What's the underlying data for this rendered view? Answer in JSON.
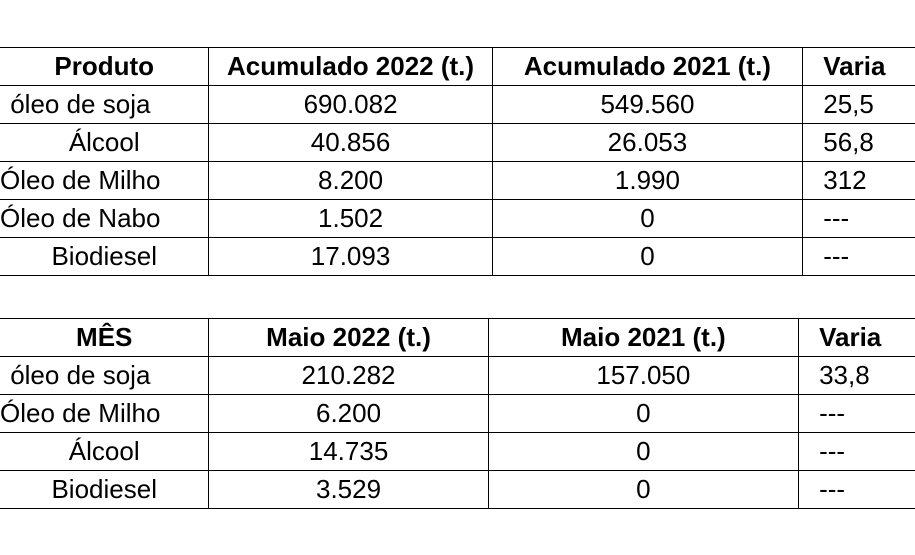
{
  "acumulado": {
    "headers": [
      "Produto",
      "Acumulado 2022 (t.)",
      "Acumulado 2021 (t.)",
      "Varia"
    ],
    "rows": [
      [
        "óleo de soja",
        "690.082",
        "549.560",
        "25,5"
      ],
      [
        "Álcool",
        "40.856",
        "26.053",
        "56,8"
      ],
      [
        "Óleo de Milho",
        "8.200",
        "1.990",
        "312"
      ],
      [
        "Óleo de Nabo",
        "1.502",
        "0",
        "---"
      ],
      [
        "Biodiesel",
        "17.093",
        "0",
        "---"
      ]
    ]
  },
  "mes": {
    "headers": [
      "MÊS",
      "Maio 2022 (t.)",
      "Maio 2021 (t.)",
      "Varia"
    ],
    "rows": [
      [
        "óleo de soja",
        "210.282",
        "157.050",
        "33,8"
      ],
      [
        "Óleo de Milho",
        "6.200",
        "0",
        "---"
      ],
      [
        "Álcool",
        "14.735",
        "0",
        "---"
      ],
      [
        "Biodiesel",
        "3.529",
        "0",
        "---"
      ]
    ]
  }
}
